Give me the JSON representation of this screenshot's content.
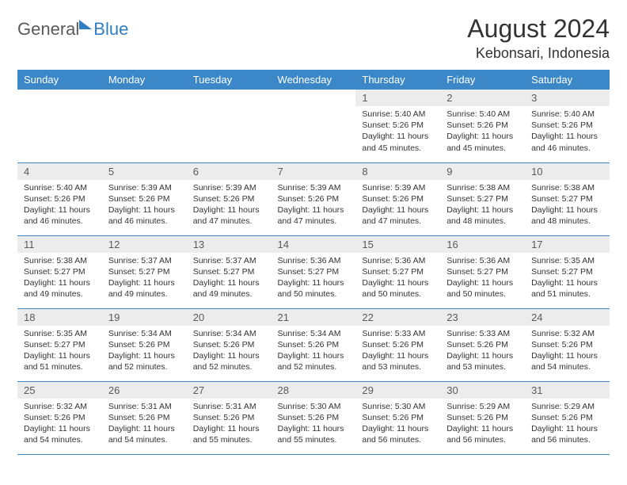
{
  "brand": {
    "part1": "General",
    "part2": "Blue"
  },
  "title": "August 2024",
  "location": "Kebonsari, Indonesia",
  "colors": {
    "header_bg": "#3b87c8",
    "header_text": "#ffffff",
    "daynum_bg": "#ececec",
    "daynum_text": "#5a5a5a",
    "body_text": "#333333",
    "rule": "#3b87c8",
    "logo_blue": "#2f7fc2",
    "logo_gray": "#5a5a5a"
  },
  "day_headers": [
    "Sunday",
    "Monday",
    "Tuesday",
    "Wednesday",
    "Thursday",
    "Friday",
    "Saturday"
  ],
  "weeks": [
    [
      {
        "n": "",
        "sr": "",
        "ss": "",
        "dl": ""
      },
      {
        "n": "",
        "sr": "",
        "ss": "",
        "dl": ""
      },
      {
        "n": "",
        "sr": "",
        "ss": "",
        "dl": ""
      },
      {
        "n": "",
        "sr": "",
        "ss": "",
        "dl": ""
      },
      {
        "n": "1",
        "sr": "Sunrise: 5:40 AM",
        "ss": "Sunset: 5:26 PM",
        "dl": "Daylight: 11 hours and 45 minutes."
      },
      {
        "n": "2",
        "sr": "Sunrise: 5:40 AM",
        "ss": "Sunset: 5:26 PM",
        "dl": "Daylight: 11 hours and 45 minutes."
      },
      {
        "n": "3",
        "sr": "Sunrise: 5:40 AM",
        "ss": "Sunset: 5:26 PM",
        "dl": "Daylight: 11 hours and 46 minutes."
      }
    ],
    [
      {
        "n": "4",
        "sr": "Sunrise: 5:40 AM",
        "ss": "Sunset: 5:26 PM",
        "dl": "Daylight: 11 hours and 46 minutes."
      },
      {
        "n": "5",
        "sr": "Sunrise: 5:39 AM",
        "ss": "Sunset: 5:26 PM",
        "dl": "Daylight: 11 hours and 46 minutes."
      },
      {
        "n": "6",
        "sr": "Sunrise: 5:39 AM",
        "ss": "Sunset: 5:26 PM",
        "dl": "Daylight: 11 hours and 47 minutes."
      },
      {
        "n": "7",
        "sr": "Sunrise: 5:39 AM",
        "ss": "Sunset: 5:26 PM",
        "dl": "Daylight: 11 hours and 47 minutes."
      },
      {
        "n": "8",
        "sr": "Sunrise: 5:39 AM",
        "ss": "Sunset: 5:26 PM",
        "dl": "Daylight: 11 hours and 47 minutes."
      },
      {
        "n": "9",
        "sr": "Sunrise: 5:38 AM",
        "ss": "Sunset: 5:27 PM",
        "dl": "Daylight: 11 hours and 48 minutes."
      },
      {
        "n": "10",
        "sr": "Sunrise: 5:38 AM",
        "ss": "Sunset: 5:27 PM",
        "dl": "Daylight: 11 hours and 48 minutes."
      }
    ],
    [
      {
        "n": "11",
        "sr": "Sunrise: 5:38 AM",
        "ss": "Sunset: 5:27 PM",
        "dl": "Daylight: 11 hours and 49 minutes."
      },
      {
        "n": "12",
        "sr": "Sunrise: 5:37 AM",
        "ss": "Sunset: 5:27 PM",
        "dl": "Daylight: 11 hours and 49 minutes."
      },
      {
        "n": "13",
        "sr": "Sunrise: 5:37 AM",
        "ss": "Sunset: 5:27 PM",
        "dl": "Daylight: 11 hours and 49 minutes."
      },
      {
        "n": "14",
        "sr": "Sunrise: 5:36 AM",
        "ss": "Sunset: 5:27 PM",
        "dl": "Daylight: 11 hours and 50 minutes."
      },
      {
        "n": "15",
        "sr": "Sunrise: 5:36 AM",
        "ss": "Sunset: 5:27 PM",
        "dl": "Daylight: 11 hours and 50 minutes."
      },
      {
        "n": "16",
        "sr": "Sunrise: 5:36 AM",
        "ss": "Sunset: 5:27 PM",
        "dl": "Daylight: 11 hours and 50 minutes."
      },
      {
        "n": "17",
        "sr": "Sunrise: 5:35 AM",
        "ss": "Sunset: 5:27 PM",
        "dl": "Daylight: 11 hours and 51 minutes."
      }
    ],
    [
      {
        "n": "18",
        "sr": "Sunrise: 5:35 AM",
        "ss": "Sunset: 5:27 PM",
        "dl": "Daylight: 11 hours and 51 minutes."
      },
      {
        "n": "19",
        "sr": "Sunrise: 5:34 AM",
        "ss": "Sunset: 5:26 PM",
        "dl": "Daylight: 11 hours and 52 minutes."
      },
      {
        "n": "20",
        "sr": "Sunrise: 5:34 AM",
        "ss": "Sunset: 5:26 PM",
        "dl": "Daylight: 11 hours and 52 minutes."
      },
      {
        "n": "21",
        "sr": "Sunrise: 5:34 AM",
        "ss": "Sunset: 5:26 PM",
        "dl": "Daylight: 11 hours and 52 minutes."
      },
      {
        "n": "22",
        "sr": "Sunrise: 5:33 AM",
        "ss": "Sunset: 5:26 PM",
        "dl": "Daylight: 11 hours and 53 minutes."
      },
      {
        "n": "23",
        "sr": "Sunrise: 5:33 AM",
        "ss": "Sunset: 5:26 PM",
        "dl": "Daylight: 11 hours and 53 minutes."
      },
      {
        "n": "24",
        "sr": "Sunrise: 5:32 AM",
        "ss": "Sunset: 5:26 PM",
        "dl": "Daylight: 11 hours and 54 minutes."
      }
    ],
    [
      {
        "n": "25",
        "sr": "Sunrise: 5:32 AM",
        "ss": "Sunset: 5:26 PM",
        "dl": "Daylight: 11 hours and 54 minutes."
      },
      {
        "n": "26",
        "sr": "Sunrise: 5:31 AM",
        "ss": "Sunset: 5:26 PM",
        "dl": "Daylight: 11 hours and 54 minutes."
      },
      {
        "n": "27",
        "sr": "Sunrise: 5:31 AM",
        "ss": "Sunset: 5:26 PM",
        "dl": "Daylight: 11 hours and 55 minutes."
      },
      {
        "n": "28",
        "sr": "Sunrise: 5:30 AM",
        "ss": "Sunset: 5:26 PM",
        "dl": "Daylight: 11 hours and 55 minutes."
      },
      {
        "n": "29",
        "sr": "Sunrise: 5:30 AM",
        "ss": "Sunset: 5:26 PM",
        "dl": "Daylight: 11 hours and 56 minutes."
      },
      {
        "n": "30",
        "sr": "Sunrise: 5:29 AM",
        "ss": "Sunset: 5:26 PM",
        "dl": "Daylight: 11 hours and 56 minutes."
      },
      {
        "n": "31",
        "sr": "Sunrise: 5:29 AM",
        "ss": "Sunset: 5:26 PM",
        "dl": "Daylight: 11 hours and 56 minutes."
      }
    ]
  ]
}
